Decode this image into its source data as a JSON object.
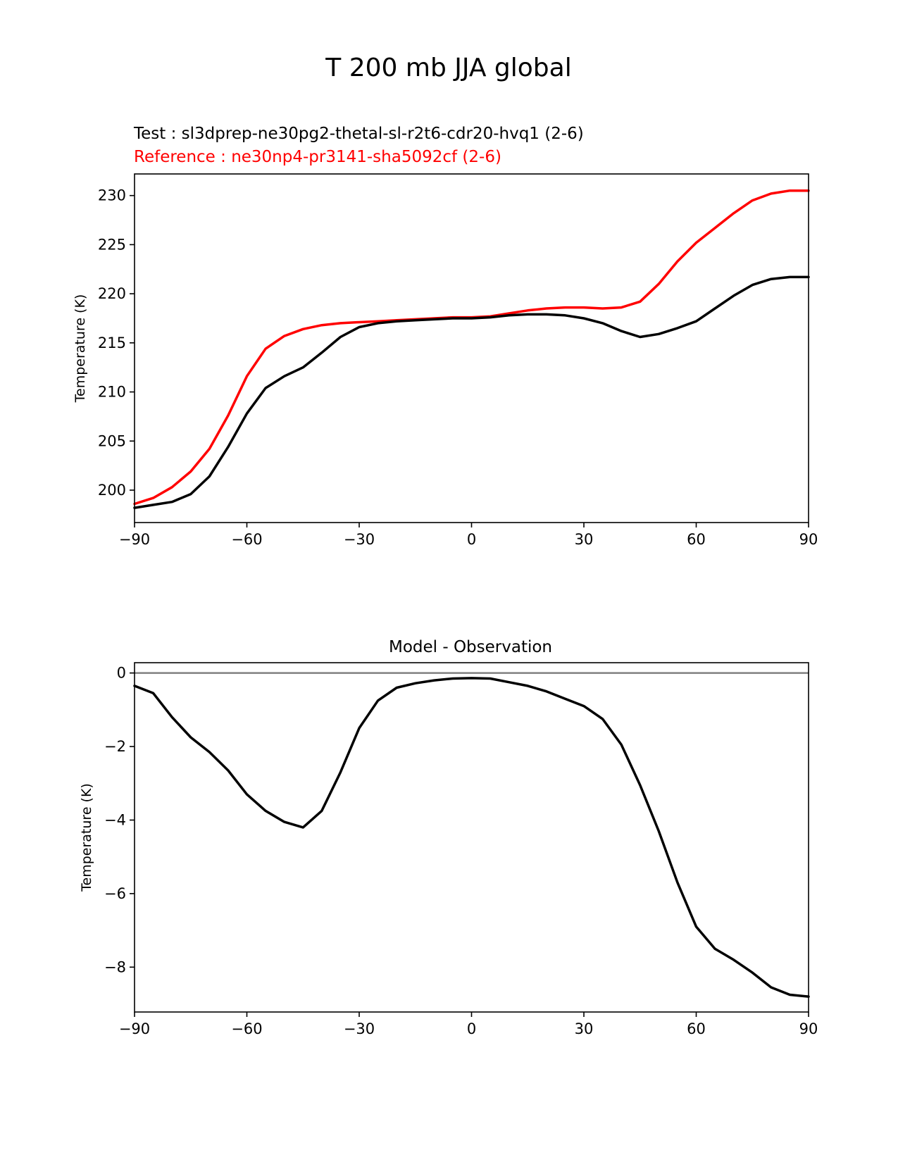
{
  "figure": {
    "title": "T 200 mb JJA global",
    "test_label": "Test : sl3dprep-ne30pg2-thetal-sl-r2t6-cdr20-hvq1 (2-6)",
    "reference_label": "Reference : ne30np4-pr3141-sha5092cf (2-6)",
    "colors": {
      "test": "#000000",
      "reference": "#ff0000",
      "zero_line": "#808080"
    }
  },
  "chart_data": [
    {
      "type": "line",
      "title": "",
      "xlabel": "",
      "ylabel": "Temperature (K)",
      "xlim": [
        -90,
        90
      ],
      "ylim": [
        196.7,
        232.2
      ],
      "xticks": [
        "−90",
        "−60",
        "−30",
        "0",
        "30",
        "60",
        "90"
      ],
      "xtick_values": [
        -90,
        -60,
        -30,
        0,
        30,
        60,
        90
      ],
      "yticks": [
        "200",
        "205",
        "210",
        "215",
        "220",
        "225",
        "230"
      ],
      "ytick_values": [
        200,
        205,
        210,
        215,
        220,
        225,
        230
      ],
      "grid": false,
      "x": [
        -90,
        -85,
        -80,
        -75,
        -70,
        -65,
        -60,
        -55,
        -50,
        -45,
        -40,
        -35,
        -30,
        -25,
        -20,
        -15,
        -10,
        -5,
        0,
        5,
        10,
        15,
        20,
        25,
        30,
        35,
        40,
        45,
        50,
        55,
        60,
        65,
        70,
        75,
        80,
        85,
        90
      ],
      "series": [
        {
          "name": "Reference : ne30np4-pr3141-sha5092cf (2-6)",
          "color": "#ff0000",
          "values": [
            198.6,
            199.2,
            200.3,
            201.9,
            204.2,
            207.6,
            211.6,
            214.4,
            215.7,
            216.4,
            216.8,
            217.0,
            217.1,
            217.2,
            217.3,
            217.4,
            217.5,
            217.6,
            217.6,
            217.7,
            218.0,
            218.3,
            218.5,
            218.6,
            218.6,
            218.5,
            218.6,
            219.2,
            221.0,
            223.3,
            225.2,
            226.7,
            228.2,
            229.5,
            230.2,
            230.5,
            230.5
          ]
        },
        {
          "name": "Test : sl3dprep-ne30pg2-thetal-sl-r2t6-cdr20-hvq1 (2-6)",
          "color": "#000000",
          "values": [
            198.2,
            198.5,
            198.8,
            199.6,
            201.4,
            204.4,
            207.8,
            210.4,
            211.6,
            212.5,
            214.0,
            215.6,
            216.6,
            217.0,
            217.2,
            217.3,
            217.4,
            217.5,
            217.5,
            217.6,
            217.8,
            217.9,
            217.9,
            217.8,
            217.5,
            217.0,
            216.2,
            215.6,
            215.9,
            216.5,
            217.2,
            218.5,
            219.8,
            220.9,
            221.5,
            221.7,
            221.7
          ]
        }
      ]
    },
    {
      "type": "line",
      "title": "Model - Observation",
      "xlabel": "",
      "ylabel": "Temperature (K)",
      "xlim": [
        -90,
        90
      ],
      "ylim": [
        -9.22,
        0.28
      ],
      "xticks": [
        "−90",
        "−60",
        "−30",
        "0",
        "30",
        "60",
        "90"
      ],
      "xtick_values": [
        -90,
        -60,
        -30,
        0,
        30,
        60,
        90
      ],
      "yticks": [
        "0",
        "−2",
        "−4",
        "−6",
        "−8"
      ],
      "ytick_values": [
        0,
        -2,
        -4,
        -6,
        -8
      ],
      "grid": false,
      "zero_line": true,
      "x": [
        -90,
        -85,
        -80,
        -75,
        -70,
        -65,
        -60,
        -55,
        -50,
        -45,
        -40,
        -35,
        -30,
        -25,
        -20,
        -15,
        -10,
        -5,
        0,
        5,
        10,
        15,
        20,
        25,
        30,
        35,
        40,
        45,
        50,
        55,
        60,
        65,
        70,
        75,
        80,
        85,
        90
      ],
      "series": [
        {
          "name": "",
          "color": "#000000",
          "values": [
            -0.35,
            -0.55,
            -1.2,
            -1.75,
            -2.15,
            -2.65,
            -3.3,
            -3.75,
            -4.05,
            -4.2,
            -3.75,
            -2.7,
            -1.5,
            -0.75,
            -0.4,
            -0.28,
            -0.2,
            -0.15,
            -0.14,
            -0.15,
            -0.25,
            -0.35,
            -0.5,
            -0.7,
            -0.9,
            -1.25,
            -1.95,
            -3.05,
            -4.3,
            -5.7,
            -6.9,
            -7.5,
            -7.8,
            -8.15,
            -8.55,
            -8.75,
            -8.8
          ]
        }
      ]
    }
  ]
}
